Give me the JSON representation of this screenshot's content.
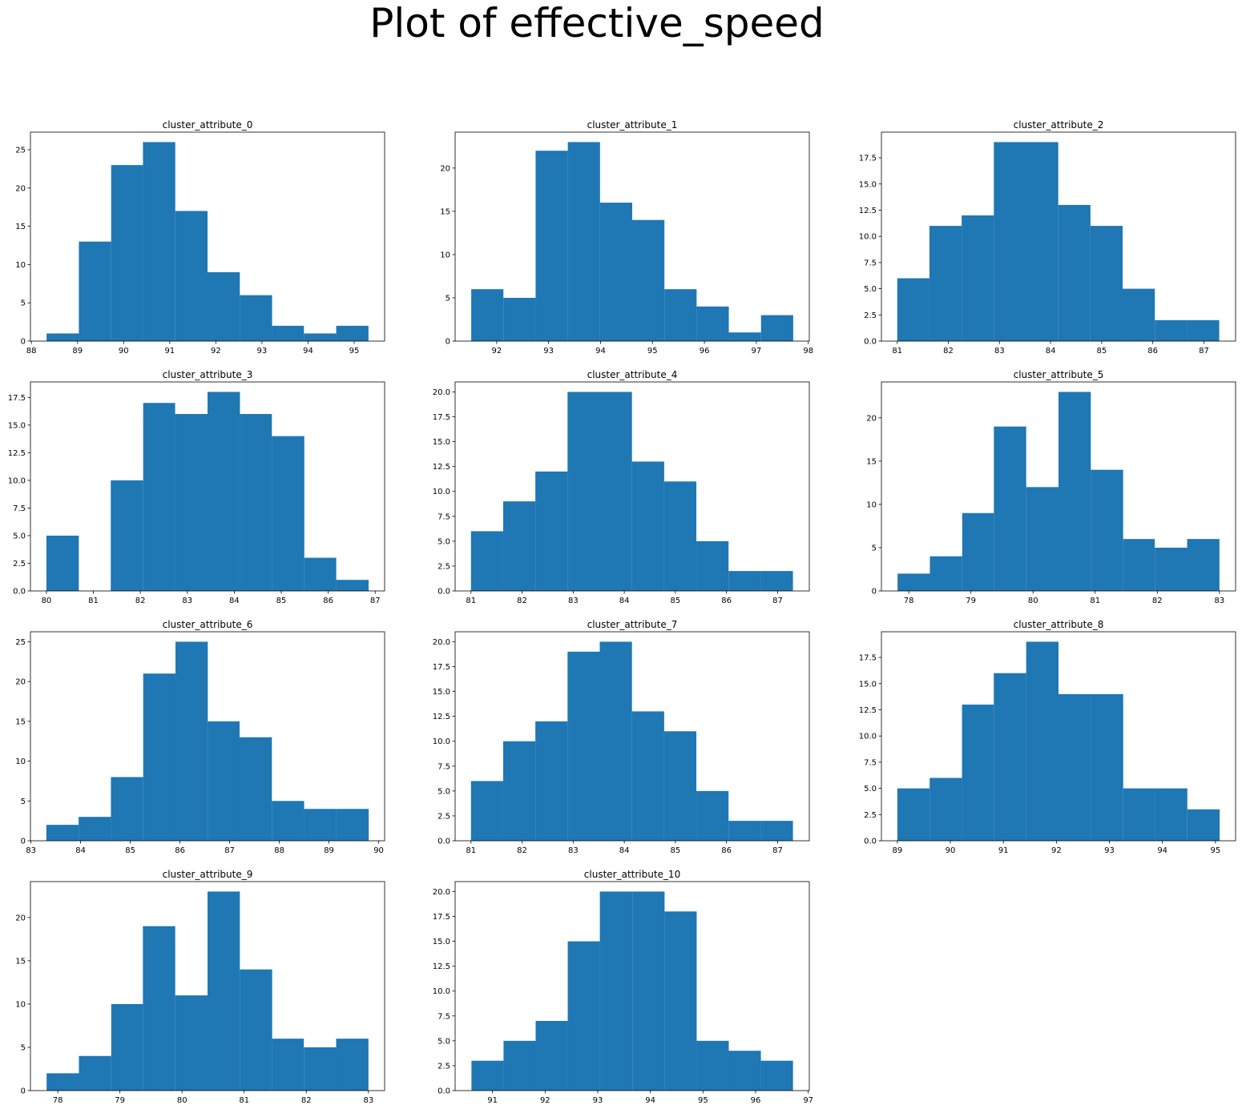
{
  "title": "Plot of effective_speed",
  "chart_data": [
    {
      "type": "histogram",
      "title": "cluster_attribute_0",
      "color": "#1f77b4",
      "bins": [
        88.33,
        89.03,
        89.73,
        90.42,
        91.12,
        91.82,
        92.52,
        93.22,
        93.91,
        94.61,
        95.31
      ],
      "counts": [
        1,
        13,
        23,
        26,
        17,
        9,
        6,
        2,
        1,
        2
      ],
      "xlim": [
        87.98,
        95.66
      ],
      "xticks": [
        88,
        89,
        90,
        91,
        92,
        93,
        94,
        95
      ],
      "ylim": [
        0,
        27.3
      ],
      "yticks": [
        0,
        5,
        10,
        15,
        20,
        25
      ]
    },
    {
      "type": "histogram",
      "title": "cluster_attribute_1",
      "color": "#1f77b4",
      "bins": [
        91.51,
        92.13,
        92.75,
        93.37,
        93.99,
        94.61,
        95.23,
        95.85,
        96.47,
        97.09,
        97.71
      ],
      "counts": [
        6,
        5,
        22,
        23,
        16,
        14,
        6,
        4,
        1,
        3
      ],
      "xlim": [
        91.2,
        98.02
      ],
      "xticks": [
        92,
        93,
        94,
        95,
        96,
        97,
        98
      ],
      "ylim": [
        0,
        24.15
      ],
      "yticks": [
        0,
        5,
        10,
        15,
        20
      ]
    },
    {
      "type": "histogram",
      "title": "cluster_attribute_2",
      "color": "#1f77b4",
      "bins": [
        81,
        81.63,
        82.26,
        82.89,
        83.52,
        84.15,
        84.78,
        85.41,
        86.04,
        86.67,
        87.3
      ],
      "counts": [
        6,
        11,
        12,
        19,
        19,
        13,
        11,
        5,
        2,
        2
      ],
      "xlim": [
        80.69,
        87.62
      ],
      "xticks": [
        81,
        82,
        83,
        84,
        85,
        86,
        87
      ],
      "ylim": [
        0,
        19.95
      ],
      "yticks": [
        {
          "value": 0,
          "label": "0.0"
        },
        2.5,
        {
          "value": 5,
          "label": "5.0"
        },
        7.5,
        {
          "value": 10,
          "label": "10.0"
        },
        12.5,
        {
          "value": 15,
          "label": "15.0"
        },
        17.5
      ]
    },
    {
      "type": "histogram",
      "title": "cluster_attribute_3",
      "color": "#1f77b4",
      "bins": [
        80,
        80.69,
        81.37,
        82.06,
        82.74,
        83.43,
        84.12,
        84.8,
        85.49,
        86.17,
        86.86
      ],
      "counts": [
        5,
        0,
        10,
        17,
        16,
        18,
        16,
        14,
        3,
        1
      ],
      "xlim": [
        79.66,
        87.2
      ],
      "xticks": [
        80,
        81,
        82,
        83,
        84,
        85,
        86,
        87
      ],
      "ylim": [
        0,
        18.9
      ],
      "yticks": [
        {
          "value": 0,
          "label": "0.0"
        },
        2.5,
        {
          "value": 5,
          "label": "5.0"
        },
        7.5,
        {
          "value": 10,
          "label": "10.0"
        },
        12.5,
        {
          "value": 15,
          "label": "15.0"
        },
        17.5
      ]
    },
    {
      "type": "histogram",
      "title": "cluster_attribute_4",
      "color": "#1f77b4",
      "bins": [
        81,
        81.63,
        82.26,
        82.89,
        83.52,
        84.15,
        84.78,
        85.41,
        86.04,
        86.67,
        87.3
      ],
      "counts": [
        6,
        9,
        12,
        20,
        20,
        13,
        11,
        5,
        2,
        2
      ],
      "xlim": [
        80.69,
        87.62
      ],
      "xticks": [
        81,
        82,
        83,
        84,
        85,
        86,
        87
      ],
      "ylim": [
        0,
        21
      ],
      "yticks": [
        {
          "value": 0,
          "label": "0.0"
        },
        2.5,
        {
          "value": 5,
          "label": "5.0"
        },
        7.5,
        {
          "value": 10,
          "label": "10.0"
        },
        12.5,
        {
          "value": 15,
          "label": "15.0"
        },
        17.5,
        {
          "value": 20,
          "label": "20.0"
        }
      ]
    },
    {
      "type": "histogram",
      "title": "cluster_attribute_5",
      "color": "#1f77b4",
      "bins": [
        77.82,
        78.34,
        78.86,
        79.37,
        79.89,
        80.41,
        80.93,
        81.45,
        81.96,
        82.48,
        83.0
      ],
      "counts": [
        2,
        4,
        9,
        19,
        12,
        23,
        14,
        6,
        5,
        6
      ],
      "xlim": [
        77.56,
        83.26
      ],
      "xticks": [
        78,
        79,
        80,
        81,
        82,
        83
      ],
      "ylim": [
        0,
        24.15
      ],
      "yticks": [
        0,
        5,
        10,
        15,
        20
      ]
    },
    {
      "type": "histogram",
      "title": "cluster_attribute_6",
      "color": "#1f77b4",
      "bins": [
        83.31,
        83.96,
        84.61,
        85.26,
        85.91,
        86.56,
        87.2,
        87.85,
        88.5,
        89.15,
        89.8
      ],
      "counts": [
        2,
        3,
        8,
        21,
        25,
        15,
        13,
        5,
        4,
        4
      ],
      "xlim": [
        82.99,
        90.12
      ],
      "xticks": [
        83,
        84,
        85,
        86,
        87,
        88,
        89,
        90
      ],
      "ylim": [
        0,
        26.25
      ],
      "yticks": [
        0,
        5,
        10,
        15,
        20,
        25
      ]
    },
    {
      "type": "histogram",
      "title": "cluster_attribute_7",
      "color": "#1f77b4",
      "bins": [
        81,
        81.63,
        82.26,
        82.89,
        83.52,
        84.15,
        84.78,
        85.41,
        86.04,
        86.67,
        87.3
      ],
      "counts": [
        6,
        10,
        12,
        19,
        20,
        13,
        11,
        5,
        2,
        2
      ],
      "xlim": [
        80.69,
        87.62
      ],
      "xticks": [
        81,
        82,
        83,
        84,
        85,
        86,
        87
      ],
      "ylim": [
        0,
        21
      ],
      "yticks": [
        {
          "value": 0,
          "label": "0.0"
        },
        2.5,
        {
          "value": 5,
          "label": "5.0"
        },
        7.5,
        {
          "value": 10,
          "label": "10.0"
        },
        12.5,
        {
          "value": 15,
          "label": "15.0"
        },
        17.5,
        {
          "value": 20,
          "label": "20.0"
        }
      ]
    },
    {
      "type": "histogram",
      "title": "cluster_attribute_8",
      "color": "#1f77b4",
      "bins": [
        89,
        89.61,
        90.22,
        90.82,
        91.43,
        92.04,
        92.65,
        93.26,
        93.86,
        94.47,
        95.08
      ],
      "counts": [
        5,
        6,
        13,
        16,
        19,
        14,
        14,
        5,
        5,
        3
      ],
      "xlim": [
        88.7,
        95.38
      ],
      "xticks": [
        89,
        90,
        91,
        92,
        93,
        94,
        95
      ],
      "ylim": [
        0,
        19.95
      ],
      "yticks": [
        {
          "value": 0,
          "label": "0.0"
        },
        2.5,
        {
          "value": 5,
          "label": "5.0"
        },
        7.5,
        {
          "value": 10,
          "label": "10.0"
        },
        12.5,
        {
          "value": 15,
          "label": "15.0"
        },
        17.5
      ]
    },
    {
      "type": "histogram",
      "title": "cluster_attribute_9",
      "color": "#1f77b4",
      "bins": [
        77.82,
        78.34,
        78.86,
        79.37,
        79.89,
        80.41,
        80.93,
        81.45,
        81.96,
        82.48,
        83.0
      ],
      "counts": [
        2,
        4,
        10,
        19,
        11,
        23,
        14,
        6,
        5,
        6
      ],
      "xlim": [
        77.56,
        83.26
      ],
      "xticks": [
        78,
        79,
        80,
        81,
        82,
        83
      ],
      "ylim": [
        0,
        24.15
      ],
      "yticks": [
        0,
        5,
        10,
        15,
        20
      ]
    },
    {
      "type": "histogram",
      "title": "cluster_attribute_10",
      "color": "#1f77b4",
      "bins": [
        90.6,
        91.21,
        91.82,
        92.43,
        93.04,
        93.66,
        94.27,
        94.88,
        95.49,
        96.1,
        96.71
      ],
      "counts": [
        3,
        5,
        7,
        15,
        20,
        20,
        18,
        5,
        4,
        3
      ],
      "xlim": [
        90.29,
        97.02
      ],
      "xticks": [
        91,
        92,
        93,
        94,
        95,
        96,
        97
      ],
      "ylim": [
        0,
        21
      ],
      "yticks": [
        {
          "value": 0,
          "label": "0.0"
        },
        2.5,
        {
          "value": 5,
          "label": "5.0"
        },
        7.5,
        {
          "value": 10,
          "label": "10.0"
        },
        12.5,
        {
          "value": 15,
          "label": "15.0"
        },
        17.5,
        {
          "value": 20,
          "label": "20.0"
        }
      ]
    }
  ]
}
